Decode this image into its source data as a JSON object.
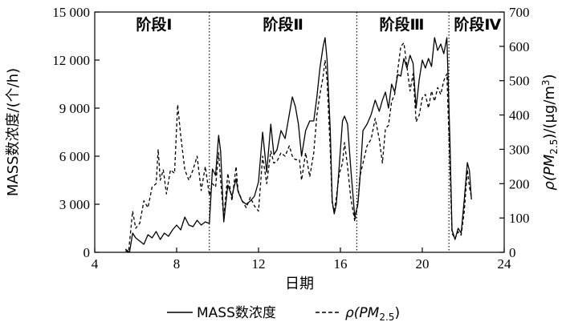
{
  "chart_data": {
    "type": "line",
    "title": "",
    "xlabel": "日期",
    "ylabel_left": "MASS数浓度/(个/h)",
    "ylabel_right": {
      "main": "ρ(PM",
      "sub": "2.5",
      "mid": ")/(μg/m",
      "sup": "3",
      "end": ")"
    },
    "xlim": [
      4,
      24
    ],
    "ylim_left": [
      0,
      15000
    ],
    "ylim_right": [
      0,
      700
    ],
    "x_ticks": [
      4,
      8,
      12,
      16,
      20,
      24
    ],
    "y_left_ticks": [
      {
        "value": 0,
        "label": "0"
      },
      {
        "value": 3000,
        "label": "3 000"
      },
      {
        "value": 6000,
        "label": "6 000"
      },
      {
        "value": 9000,
        "label": "9 000"
      },
      {
        "value": 12000,
        "label": "12 000"
      },
      {
        "value": 15000,
        "label": "15 000"
      }
    ],
    "y_right_ticks": [
      0,
      100,
      200,
      300,
      400,
      500,
      600,
      700
    ],
    "stage_dividers": [
      9.6,
      16.8,
      21.3
    ],
    "stages": [
      {
        "label": "阶段Ⅰ",
        "x": 6.9
      },
      {
        "label": "阶段Ⅱ",
        "x": 13.2
      },
      {
        "label": "阶段Ⅲ",
        "x": 19.0
      },
      {
        "label": "阶段Ⅳ",
        "x": 22.7
      }
    ],
    "legend": {
      "mass": "MASS数浓度",
      "pm_prefix": "ρ(PM",
      "pm_sub": "2.5",
      "pm_suffix": ")"
    },
    "series": [
      {
        "name": "MASS数浓度",
        "axis": "left",
        "style": "solid",
        "points": [
          [
            5.5,
            200
          ],
          [
            5.7,
            0
          ],
          [
            5.85,
            1200
          ],
          [
            6.0,
            900
          ],
          [
            6.2,
            700
          ],
          [
            6.4,
            500
          ],
          [
            6.6,
            1100
          ],
          [
            6.8,
            900
          ],
          [
            7.0,
            1300
          ],
          [
            7.2,
            800
          ],
          [
            7.4,
            1200
          ],
          [
            7.6,
            1000
          ],
          [
            7.8,
            1400
          ],
          [
            8.0,
            1700
          ],
          [
            8.2,
            1400
          ],
          [
            8.4,
            2200
          ],
          [
            8.6,
            1700
          ],
          [
            8.8,
            1600
          ],
          [
            9.0,
            2000
          ],
          [
            9.2,
            1700
          ],
          [
            9.4,
            1900
          ],
          [
            9.6,
            1800
          ],
          [
            9.75,
            5200
          ],
          [
            9.9,
            4800
          ],
          [
            10.05,
            7300
          ],
          [
            10.15,
            6300
          ],
          [
            10.3,
            1900
          ],
          [
            10.5,
            4200
          ],
          [
            10.7,
            3500
          ],
          [
            10.9,
            4600
          ],
          [
            11.0,
            3800
          ],
          [
            11.2,
            3200
          ],
          [
            11.4,
            3000
          ],
          [
            11.6,
            3200
          ],
          [
            11.8,
            3500
          ],
          [
            12.0,
            4400
          ],
          [
            12.2,
            7500
          ],
          [
            12.4,
            5000
          ],
          [
            12.6,
            8000
          ],
          [
            12.75,
            6100
          ],
          [
            12.9,
            6400
          ],
          [
            13.1,
            7600
          ],
          [
            13.3,
            7100
          ],
          [
            13.5,
            8600
          ],
          [
            13.65,
            9700
          ],
          [
            13.8,
            9100
          ],
          [
            13.95,
            8000
          ],
          [
            14.1,
            6000
          ],
          [
            14.3,
            7600
          ],
          [
            14.5,
            8200
          ],
          [
            14.7,
            8200
          ],
          [
            14.85,
            9700
          ],
          [
            15.0,
            11500
          ],
          [
            15.15,
            12800
          ],
          [
            15.25,
            13400
          ],
          [
            15.35,
            12000
          ],
          [
            15.5,
            7700
          ],
          [
            15.6,
            3200
          ],
          [
            15.7,
            2400
          ],
          [
            15.8,
            3000
          ],
          [
            15.95,
            5500
          ],
          [
            16.1,
            8200
          ],
          [
            16.2,
            8500
          ],
          [
            16.35,
            8000
          ],
          [
            16.5,
            5300
          ],
          [
            16.7,
            2200
          ],
          [
            16.85,
            3000
          ],
          [
            16.95,
            4500
          ],
          [
            17.1,
            7600
          ],
          [
            17.3,
            8000
          ],
          [
            17.5,
            8600
          ],
          [
            17.7,
            9500
          ],
          [
            17.9,
            8800
          ],
          [
            18.05,
            9500
          ],
          [
            18.2,
            10000
          ],
          [
            18.35,
            9000
          ],
          [
            18.5,
            10500
          ],
          [
            18.65,
            10000
          ],
          [
            18.8,
            11100
          ],
          [
            18.95,
            11000
          ],
          [
            19.1,
            12100
          ],
          [
            19.25,
            11500
          ],
          [
            19.4,
            12300
          ],
          [
            19.55,
            11800
          ],
          [
            19.7,
            9000
          ],
          [
            19.85,
            10800
          ],
          [
            20.0,
            12000
          ],
          [
            20.15,
            11500
          ],
          [
            20.3,
            12100
          ],
          [
            20.45,
            11600
          ],
          [
            20.6,
            13400
          ],
          [
            20.75,
            12600
          ],
          [
            20.9,
            13000
          ],
          [
            21.05,
            12400
          ],
          [
            21.2,
            13400
          ],
          [
            21.35,
            7000
          ],
          [
            21.45,
            1400
          ],
          [
            21.6,
            800
          ],
          [
            21.75,
            1500
          ],
          [
            21.9,
            1200
          ],
          [
            22.05,
            3300
          ],
          [
            22.2,
            5600
          ],
          [
            22.3,
            5100
          ],
          [
            22.4,
            3300
          ]
        ]
      },
      {
        "name": "ρ(PM2.5)",
        "axis": "right",
        "style": "dashed",
        "points": [
          [
            5.5,
            5
          ],
          [
            5.65,
            0
          ],
          [
            5.85,
            120
          ],
          [
            6.0,
            70
          ],
          [
            6.2,
            85
          ],
          [
            6.4,
            150
          ],
          [
            6.6,
            130
          ],
          [
            6.8,
            190
          ],
          [
            7.0,
            200
          ],
          [
            7.1,
            300
          ],
          [
            7.2,
            210
          ],
          [
            7.35,
            240
          ],
          [
            7.5,
            170
          ],
          [
            7.7,
            240
          ],
          [
            7.9,
            230
          ],
          [
            8.05,
            430
          ],
          [
            8.2,
            340
          ],
          [
            8.4,
            240
          ],
          [
            8.6,
            210
          ],
          [
            8.8,
            240
          ],
          [
            9.0,
            280
          ],
          [
            9.2,
            180
          ],
          [
            9.4,
            250
          ],
          [
            9.6,
            165
          ],
          [
            9.75,
            200
          ],
          [
            9.9,
            190
          ],
          [
            10.05,
            290
          ],
          [
            10.15,
            210
          ],
          [
            10.3,
            100
          ],
          [
            10.5,
            230
          ],
          [
            10.7,
            150
          ],
          [
            10.9,
            250
          ],
          [
            11.0,
            180
          ],
          [
            11.2,
            150
          ],
          [
            11.4,
            130
          ],
          [
            11.6,
            160
          ],
          [
            11.8,
            135
          ],
          [
            12.0,
            120
          ],
          [
            12.2,
            280
          ],
          [
            12.4,
            200
          ],
          [
            12.6,
            295
          ],
          [
            12.75,
            260
          ],
          [
            12.9,
            265
          ],
          [
            13.1,
            290
          ],
          [
            13.3,
            280
          ],
          [
            13.5,
            310
          ],
          [
            13.65,
            280
          ],
          [
            13.8,
            270
          ],
          [
            14.0,
            270
          ],
          [
            14.1,
            210
          ],
          [
            14.3,
            290
          ],
          [
            14.5,
            220
          ],
          [
            14.7,
            290
          ],
          [
            14.85,
            400
          ],
          [
            15.0,
            460
          ],
          [
            15.15,
            510
          ],
          [
            15.25,
            560
          ],
          [
            15.35,
            500
          ],
          [
            15.5,
            300
          ],
          [
            15.6,
            140
          ],
          [
            15.7,
            120
          ],
          [
            15.8,
            160
          ],
          [
            15.95,
            230
          ],
          [
            16.1,
            260
          ],
          [
            16.2,
            320
          ],
          [
            16.35,
            250
          ],
          [
            16.5,
            160
          ],
          [
            16.7,
            90
          ],
          [
            16.85,
            140
          ],
          [
            16.95,
            220
          ],
          [
            17.1,
            260
          ],
          [
            17.3,
            310
          ],
          [
            17.5,
            330
          ],
          [
            17.7,
            390
          ],
          [
            17.9,
            330
          ],
          [
            18.05,
            260
          ],
          [
            18.2,
            360
          ],
          [
            18.35,
            370
          ],
          [
            18.5,
            440
          ],
          [
            18.65,
            460
          ],
          [
            18.8,
            530
          ],
          [
            18.95,
            600
          ],
          [
            19.1,
            610
          ],
          [
            19.25,
            540
          ],
          [
            19.4,
            470
          ],
          [
            19.55,
            520
          ],
          [
            19.7,
            380
          ],
          [
            19.85,
            400
          ],
          [
            20.0,
            450
          ],
          [
            20.15,
            460
          ],
          [
            20.3,
            420
          ],
          [
            20.45,
            470
          ],
          [
            20.6,
            440
          ],
          [
            20.75,
            480
          ],
          [
            20.9,
            460
          ],
          [
            21.05,
            500
          ],
          [
            21.2,
            520
          ],
          [
            21.35,
            250
          ],
          [
            21.45,
            55
          ],
          [
            21.6,
            40
          ],
          [
            21.75,
            60
          ],
          [
            21.9,
            50
          ],
          [
            22.05,
            120
          ],
          [
            22.2,
            240
          ],
          [
            22.3,
            190
          ],
          [
            22.4,
            160
          ]
        ]
      }
    ]
  }
}
